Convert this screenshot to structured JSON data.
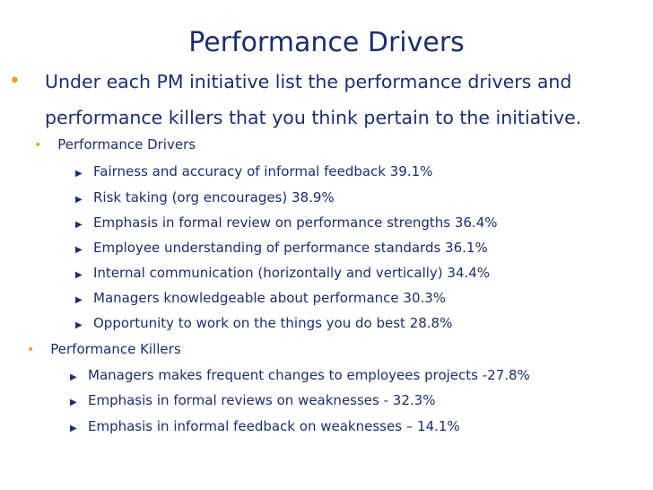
{
  "title": "Performance Drivers",
  "intro": {
    "line1": "Under each PM initiative list the performance drivers and",
    "line2": "performance killers that you think pertain to the initiative."
  },
  "drivers": {
    "heading": "Performance Drivers",
    "items": [
      "Fairness and accuracy of informal feedback 39.1%",
      "Risk taking (org encourages)  38.9%",
      "Emphasis in formal review on performance strengths 36.4%",
      "Employee understanding of performance standards 36.1%",
      "Internal communication (horizontally and vertically) 34.4%",
      "Managers knowledgeable about performance 30.3%",
      "Opportunity to work on the things you do best 28.8%"
    ]
  },
  "killers": {
    "heading": "Performance Killers",
    "items": [
      "Managers makes frequent changes to employees projects -27.8%",
      "Emphasis in formal reviews on weaknesses - 32.3%",
      "Emphasis in informal feedback on weaknesses – 14.1%"
    ]
  },
  "colors": {
    "text": "#1c2f6b",
    "bullet_accent": "#e8a21e"
  }
}
